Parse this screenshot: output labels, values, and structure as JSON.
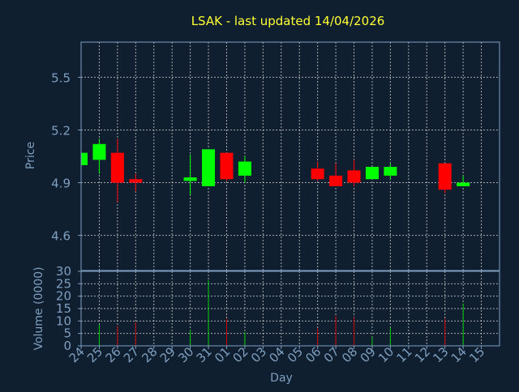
{
  "colors": {
    "background": "#0f1f30",
    "title": "#ffff33",
    "axis_label": "#7f9fbf",
    "tick_label": "#7f9fbf",
    "frame": "#7f9fbf",
    "grid": "#cfcfcf",
    "up": "#00ff00",
    "down": "#ff0000",
    "up_volume": "#00cc00",
    "down_volume": "#cc0000"
  },
  "chart_data": {
    "type": "candlestick",
    "title": "LSAK - last updated 14/04/2026",
    "xlabel": "Day",
    "price_panel": {
      "ylabel": "Price",
      "ylim": [
        4.4,
        5.7
      ],
      "yticks": [
        "4.6",
        "4.9",
        "5.2",
        "5.5"
      ],
      "grid": true
    },
    "volume_panel": {
      "ylabel": "Volume (0000)",
      "ylim": [
        0,
        30
      ],
      "yticks": [
        "0",
        "5",
        "10",
        "15",
        "20",
        "25",
        "30"
      ],
      "grid": true
    },
    "x_ticks": [
      "24",
      "25",
      "26",
      "27",
      "28",
      "29",
      "30",
      "31",
      "01",
      "02",
      "03",
      "04",
      "05",
      "06",
      "07",
      "08",
      "09",
      "10",
      "11",
      "12",
      "13",
      "14",
      "15"
    ],
    "candles": [
      {
        "day": "24",
        "open": 5.0,
        "high": 5.07,
        "low": 5.0,
        "close": 5.07,
        "volume": 0
      },
      {
        "day": "25",
        "open": 5.03,
        "high": 5.15,
        "low": 4.95,
        "close": 5.12,
        "volume": 8.5
      },
      {
        "day": "26",
        "open": 5.07,
        "high": 5.15,
        "low": 4.79,
        "close": 4.9,
        "volume": 8
      },
      {
        "day": "27",
        "open": 4.92,
        "high": 4.95,
        "low": 4.85,
        "close": 4.9,
        "volume": 9.5
      },
      {
        "day": "30",
        "open": 4.91,
        "high": 5.06,
        "low": 4.83,
        "close": 4.93,
        "volume": 6.5
      },
      {
        "day": "31",
        "open": 4.88,
        "high": 5.09,
        "low": 4.88,
        "close": 5.09,
        "volume": 26.5
      },
      {
        "day": "01",
        "open": 5.07,
        "high": 5.07,
        "low": 4.91,
        "close": 4.92,
        "volume": 11
      },
      {
        "day": "02",
        "open": 4.94,
        "high": 5.05,
        "low": 4.9,
        "close": 5.02,
        "volume": 5.5
      },
      {
        "day": "06",
        "open": 4.98,
        "high": 5.02,
        "low": 4.91,
        "close": 4.92,
        "volume": 7
      },
      {
        "day": "07",
        "open": 4.94,
        "high": 5.01,
        "low": 4.88,
        "close": 4.88,
        "volume": 12
      },
      {
        "day": "08",
        "open": 4.97,
        "high": 5.03,
        "low": 4.88,
        "close": 4.9,
        "volume": 11.5
      },
      {
        "day": "09",
        "open": 4.92,
        "high": 4.99,
        "low": 4.92,
        "close": 4.99,
        "volume": 3.5
      },
      {
        "day": "10",
        "open": 4.94,
        "high": 5.01,
        "low": 4.92,
        "close": 4.99,
        "volume": 7.5
      },
      {
        "day": "13",
        "open": 5.01,
        "high": 5.01,
        "low": 4.84,
        "close": 4.86,
        "volume": 11
      },
      {
        "day": "14",
        "open": 4.88,
        "high": 4.94,
        "low": 4.88,
        "close": 4.9,
        "volume": 17
      }
    ]
  }
}
